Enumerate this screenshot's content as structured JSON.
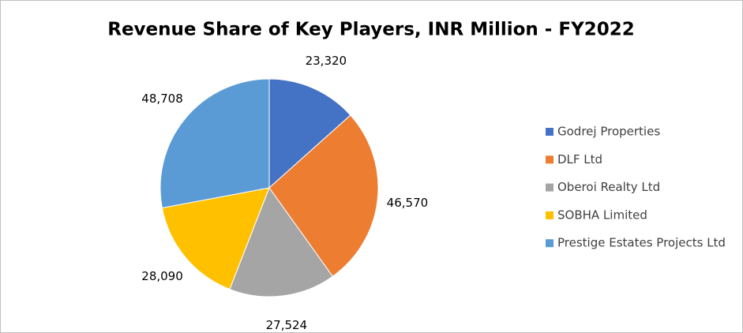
{
  "chart_data": {
    "type": "pie",
    "title": "Revenue Share of Key Players, INR Million - FY2022",
    "categories": [
      "Godrej Properties",
      "DLF Ltd",
      "Oberoi Realty Ltd",
      "SOBHA Limited",
      "Prestige Estates Projects Ltd"
    ],
    "values": [
      23320,
      46570,
      27524,
      28090,
      48708
    ],
    "value_labels": [
      "23,320",
      "46,570",
      "27,524",
      "28,090",
      "48,708"
    ],
    "colors": [
      "#4472c4",
      "#ed7d31",
      "#a5a5a5",
      "#ffc000",
      "#5b9bd5"
    ],
    "legend": "right"
  }
}
